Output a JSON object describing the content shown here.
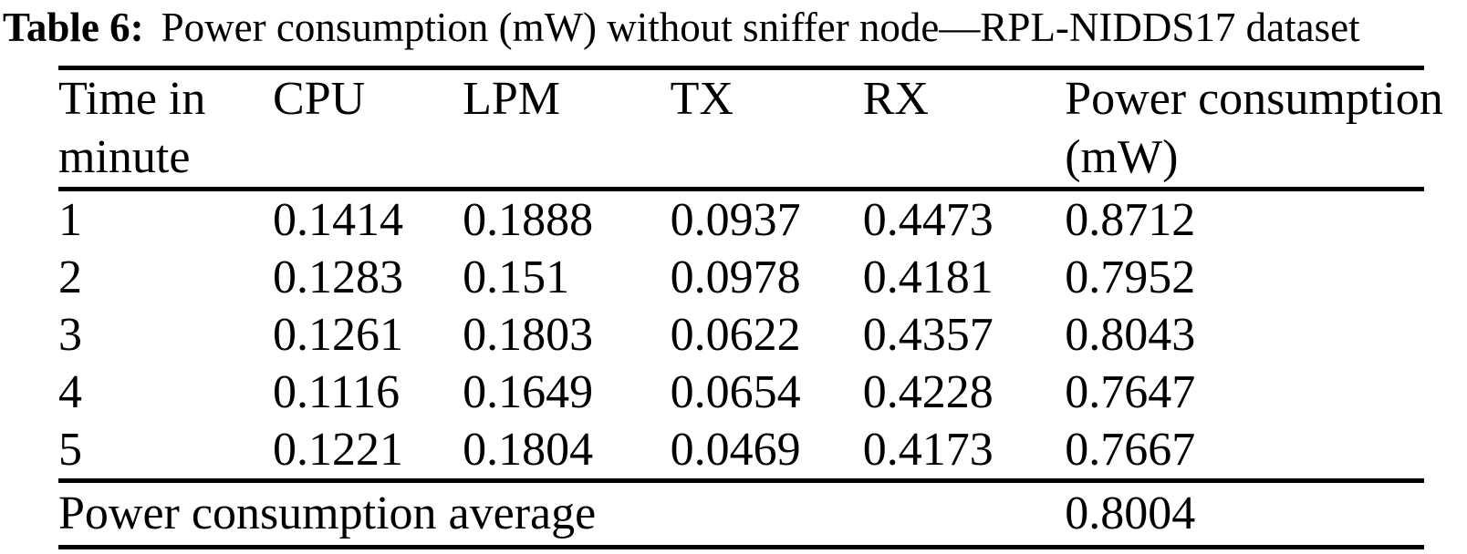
{
  "caption": {
    "label": "Table 6:",
    "text": "Power consumption (mW) without sniffer node—RPL-NIDDS17 dataset"
  },
  "table": {
    "columns": [
      {
        "lines": [
          "Time in",
          "minute"
        ]
      },
      {
        "lines": [
          "CPU"
        ]
      },
      {
        "lines": [
          "LPM"
        ]
      },
      {
        "lines": [
          "TX"
        ]
      },
      {
        "lines": [
          "RX"
        ]
      },
      {
        "lines": [
          "Power consumption",
          "(mW)"
        ]
      }
    ],
    "rows": [
      [
        "1",
        "0.1414",
        "0.1888",
        "0.0937",
        "0.4473",
        "0.8712"
      ],
      [
        "2",
        "0.1283",
        "0.151",
        "0.0978",
        "0.4181",
        "0.7952"
      ],
      [
        "3",
        "0.1261",
        "0.1803",
        "0.0622",
        "0.4357",
        "0.8043"
      ],
      [
        "4",
        "0.1116",
        "0.1649",
        "0.0654",
        "0.4228",
        "0.7647"
      ],
      [
        "5",
        "0.1221",
        "0.1804",
        "0.0469",
        "0.4173",
        "0.7667"
      ]
    ],
    "footer": {
      "label": "Power consumption average",
      "value": "0.8004"
    }
  },
  "colors": {
    "text": "#000000",
    "background": "#ffffff",
    "rule": "#000000"
  }
}
